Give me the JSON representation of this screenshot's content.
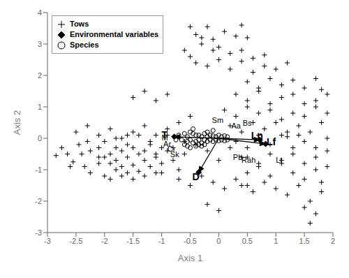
{
  "chart_data": {
    "type": "scatter",
    "xlabel": "Axis 1",
    "ylabel": "Axis 2",
    "xlim": [
      -3,
      2
    ],
    "ylim": [
      -3,
      4
    ],
    "xticks": [
      -3,
      -2.5,
      -2,
      -1.5,
      -1,
      -0.5,
      0,
      0.5,
      1,
      1.5,
      2
    ],
    "yticks": [
      -3,
      -2,
      -1,
      0,
      1,
      2,
      3,
      4
    ],
    "legend": "upper left",
    "series": [
      {
        "name": "Tows",
        "type": "scatter",
        "marker": "plus",
        "color": "black",
        "points": [
          [
            -2.85,
            -0.55
          ],
          [
            -2.75,
            -0.3
          ],
          [
            -2.65,
            -0.5
          ],
          [
            -2.55,
            -0.75
          ],
          [
            -2.45,
            -0.2
          ],
          [
            -2.35,
            -0.9
          ],
          [
            -2.25,
            -0.4
          ],
          [
            -2.25,
            -1.1
          ],
          [
            -2.1,
            -0.8
          ],
          [
            -2.1,
            -0.3
          ],
          [
            -2.0,
            -0.6
          ],
          [
            -2.0,
            -1.2
          ],
          [
            -1.9,
            -0.5
          ],
          [
            -1.9,
            -0.8
          ],
          [
            -1.8,
            -0.3
          ],
          [
            -1.8,
            -0.7
          ],
          [
            -1.8,
            -1.0
          ],
          [
            -1.7,
            -0.4
          ],
          [
            -1.7,
            -0.9
          ],
          [
            -1.6,
            -0.2
          ],
          [
            -1.6,
            -0.6
          ],
          [
            -1.6,
            -1.1
          ],
          [
            -1.5,
            -0.3
          ],
          [
            -1.5,
            -0.85
          ],
          [
            -1.4,
            -0.5
          ],
          [
            -1.4,
            -1.05
          ],
          [
            -1.3,
            -0.4
          ],
          [
            -1.3,
            -0.7
          ],
          [
            -1.2,
            -0.2
          ],
          [
            -1.2,
            -0.9
          ],
          [
            -1.1,
            -0.5
          ],
          [
            -1.1,
            -1.1
          ],
          [
            -1.0,
            -0.3
          ],
          [
            -1.0,
            -0.8
          ],
          [
            -0.9,
            -0.4
          ],
          [
            -2.6,
            -0.9
          ],
          [
            -2.4,
            -0.5
          ],
          [
            -2.3,
            -0.1
          ],
          [
            -2.1,
            -0.6
          ],
          [
            -2.0,
            -0.1
          ],
          [
            -1.9,
            -1.3
          ],
          [
            -1.8,
            0.0
          ],
          [
            -1.7,
            -1.2
          ],
          [
            -1.6,
            0.1
          ],
          [
            -1.5,
            -1.3
          ],
          [
            -1.4,
            0.1
          ],
          [
            -1.3,
            -1.2
          ],
          [
            -1.2,
            -0.1
          ],
          [
            -1.1,
            -0.6
          ],
          [
            -1.0,
            -1.1
          ],
          [
            -0.9,
            0.1
          ],
          [
            -0.8,
            -0.7
          ],
          [
            -0.7,
            -1.0
          ],
          [
            -0.6,
            -0.1
          ],
          [
            -2.5,
            0.2
          ],
          [
            -2.3,
            0.4
          ],
          [
            -2.1,
            0.1
          ],
          [
            -1.9,
            0.3
          ],
          [
            -1.7,
            0.0
          ],
          [
            -1.5,
            0.2
          ],
          [
            -1.3,
            0.4
          ],
          [
            -1.1,
            0.1
          ],
          [
            -0.9,
            0.3
          ],
          [
            -0.5,
            3.55
          ],
          [
            -0.4,
            3.3
          ],
          [
            -0.3,
            3.2
          ],
          [
            -0.2,
            3.55
          ],
          [
            -0.1,
            3.15
          ],
          [
            0.1,
            3.4
          ],
          [
            0.3,
            3.25
          ],
          [
            0.4,
            3.6
          ],
          [
            0.5,
            3.2
          ],
          [
            -0.6,
            2.8
          ],
          [
            -0.5,
            2.6
          ],
          [
            -0.3,
            3.0
          ],
          [
            -0.1,
            2.8
          ],
          [
            0.0,
            2.9
          ],
          [
            0.2,
            2.7
          ],
          [
            0.4,
            2.8
          ],
          [
            0.6,
            2.55
          ],
          [
            0.8,
            2.65
          ],
          [
            -0.4,
            2.4
          ],
          [
            -0.2,
            2.3
          ],
          [
            0.0,
            2.5
          ],
          [
            0.2,
            2.2
          ],
          [
            0.4,
            2.45
          ],
          [
            0.6,
            2.1
          ],
          [
            0.8,
            2.3
          ],
          [
            1.0,
            2.2
          ],
          [
            1.2,
            2.4
          ],
          [
            0.5,
            1.8
          ],
          [
            0.7,
            1.6
          ],
          [
            0.9,
            1.9
          ],
          [
            1.1,
            1.7
          ],
          [
            1.3,
            1.85
          ],
          [
            1.5,
            1.6
          ],
          [
            1.7,
            1.9
          ],
          [
            1.8,
            1.55
          ],
          [
            0.3,
            1.4
          ],
          [
            0.5,
            1.2
          ],
          [
            0.7,
            1.5
          ],
          [
            0.9,
            1.1
          ],
          [
            1.1,
            1.3
          ],
          [
            1.3,
            1.4
          ],
          [
            1.5,
            1.1
          ],
          [
            1.7,
            1.2
          ],
          [
            1.9,
            1.4
          ],
          [
            0.1,
            0.9
          ],
          [
            0.3,
            0.7
          ],
          [
            0.5,
            1.0
          ],
          [
            0.7,
            0.8
          ],
          [
            0.9,
            0.9
          ],
          [
            1.1,
            0.6
          ],
          [
            1.3,
            0.8
          ],
          [
            1.5,
            0.7
          ],
          [
            1.7,
            1.0
          ],
          [
            1.9,
            0.8
          ],
          [
            0.2,
            0.4
          ],
          [
            0.4,
            0.2
          ],
          [
            0.6,
            0.5
          ],
          [
            0.8,
            0.3
          ],
          [
            1.0,
            0.5
          ],
          [
            1.2,
            0.2
          ],
          [
            1.4,
            0.4
          ],
          [
            1.6,
            0.2
          ],
          [
            1.8,
            0.5
          ],
          [
            0.3,
            -0.1
          ],
          [
            0.5,
            -0.3
          ],
          [
            0.7,
            0.1
          ],
          [
            0.9,
            -0.2
          ],
          [
            1.1,
            0.1
          ],
          [
            1.3,
            -0.3
          ],
          [
            1.5,
            -0.1
          ],
          [
            1.7,
            -0.3
          ],
          [
            1.9,
            0.0
          ],
          [
            0.5,
            -0.6
          ],
          [
            0.7,
            -0.8
          ],
          [
            0.9,
            -0.5
          ],
          [
            1.1,
            -0.7
          ],
          [
            1.3,
            -0.5
          ],
          [
            1.5,
            -0.8
          ],
          [
            1.7,
            -0.6
          ],
          [
            1.9,
            -0.4
          ],
          [
            0.5,
            -1.1
          ],
          [
            0.7,
            -0.9
          ],
          [
            0.9,
            -1.2
          ],
          [
            1.1,
            -0.8
          ],
          [
            1.3,
            -1.1
          ],
          [
            1.5,
            -1.3
          ],
          [
            1.7,
            -1.0
          ],
          [
            1.8,
            -1.4
          ],
          [
            1.9,
            -0.9
          ],
          [
            0.4,
            -1.5
          ],
          [
            0.6,
            -1.7
          ],
          [
            0.8,
            -1.4
          ],
          [
            1.0,
            -1.6
          ],
          [
            1.2,
            -1.8
          ],
          [
            1.4,
            -1.5
          ],
          [
            1.6,
            -2.0
          ],
          [
            1.8,
            -1.7
          ],
          [
            -0.8,
            -0.3
          ],
          [
            -0.6,
            -0.5
          ],
          [
            -0.4,
            -0.2
          ],
          [
            -0.2,
            -0.4
          ],
          [
            0.0,
            -0.7
          ],
          [
            0.2,
            -0.3
          ],
          [
            0.4,
            -0.6
          ],
          [
            -0.7,
            -1.3
          ],
          [
            -0.5,
            -1.5
          ],
          [
            -0.3,
            -1.2
          ],
          [
            -0.1,
            -1.4
          ],
          [
            0.1,
            -1.6
          ],
          [
            0.3,
            -1.3
          ],
          [
            0.5,
            -1.5
          ],
          [
            -1.5,
            1.3
          ],
          [
            -1.3,
            1.5
          ],
          [
            -1.1,
            1.2
          ],
          [
            -0.9,
            1.4
          ],
          [
            -0.7,
            0.5
          ],
          [
            -0.5,
            0.7
          ],
          [
            1.5,
            -2.2
          ],
          [
            1.7,
            -2.4
          ],
          [
            1.6,
            -2.7
          ],
          [
            -0.2,
            -2.1
          ],
          [
            0.0,
            -2.3
          ],
          [
            1.2,
            0.05
          ],
          [
            1.4,
            0.1
          ]
        ]
      },
      {
        "name": "Environmental variables",
        "type": "arrow",
        "marker": "diamond",
        "color": "black",
        "origin": [
          0.0,
          0.0
        ],
        "points": [
          [
            -0.78,
            0.05
          ],
          [
            -0.35,
            -1.08
          ],
          [
            0.72,
            -0.05
          ],
          [
            0.82,
            -0.18
          ]
        ],
        "labels": [
          {
            "text": "T",
            "x": -0.95,
            "y": 0.12
          },
          {
            "text": "D",
            "x": -0.4,
            "y": -1.22
          },
          {
            "text": "Ln",
            "x": 0.67,
            "y": 0.08
          },
          {
            "text": "Lf",
            "x": 0.92,
            "y": -0.12
          }
        ]
      },
      {
        "name": "Species",
        "type": "scatter",
        "marker": "circle",
        "color": "black",
        "points": [
          [
            -0.5,
            0.2
          ],
          [
            -0.45,
            0.3
          ],
          [
            -0.4,
            0.1
          ],
          [
            -0.55,
            0.05
          ],
          [
            -0.6,
            0.15
          ],
          [
            -0.65,
            -0.05
          ],
          [
            -0.55,
            -0.1
          ],
          [
            -0.7,
            0.1
          ],
          [
            -0.75,
            -0.05
          ],
          [
            -0.6,
            -0.2
          ],
          [
            -0.5,
            -0.05
          ],
          [
            -0.45,
            0.15
          ],
          [
            -0.4,
            -0.1
          ],
          [
            -0.35,
            0.1
          ],
          [
            -0.3,
            0.05
          ],
          [
            -0.25,
            0.15
          ],
          [
            -0.2,
            0.05
          ],
          [
            -0.15,
            0.1
          ],
          [
            -0.1,
            0.08
          ],
          [
            -0.05,
            0.05
          ],
          [
            0.0,
            0.1
          ],
          [
            0.05,
            0.05
          ],
          [
            0.1,
            0.08
          ],
          [
            0.15,
            0.05
          ],
          [
            -0.35,
            -0.05
          ],
          [
            -0.3,
            -0.15
          ],
          [
            -0.25,
            -0.05
          ],
          [
            -0.2,
            -0.1
          ],
          [
            -0.15,
            -0.05
          ],
          [
            -0.1,
            -0.1
          ],
          [
            -0.05,
            -0.05
          ],
          [
            0.0,
            -0.08
          ],
          [
            0.05,
            -0.05
          ],
          [
            0.1,
            -0.08
          ],
          [
            0.15,
            -0.05
          ],
          [
            -0.45,
            -0.15
          ],
          [
            -0.4,
            -0.25
          ],
          [
            -0.35,
            -0.2
          ],
          [
            -0.3,
            -0.25
          ],
          [
            -0.25,
            -0.2
          ],
          [
            -0.55,
            -0.25
          ],
          [
            -0.5,
            -0.3
          ],
          [
            -0.2,
            0.2
          ],
          [
            -0.1,
            0.25
          ]
        ]
      }
    ],
    "annotations": [
      {
        "text": "Sm",
        "x": -0.12,
        "y": 0.58
      },
      {
        "text": "Aa",
        "x": 0.22,
        "y": 0.4
      },
      {
        "text": "Bs",
        "x": 0.42,
        "y": 0.5
      },
      {
        "text": "M",
        "x": -1.0,
        "y": 0.02
      },
      {
        "text": "Ar",
        "x": -0.97,
        "y": -0.18
      },
      {
        "text": "Cr",
        "x": -0.9,
        "y": -0.33
      },
      {
        "text": "Sk",
        "x": -0.85,
        "y": -0.5
      },
      {
        "text": "Pb",
        "x": 0.25,
        "y": -0.6
      },
      {
        "text": "Rah",
        "x": 0.4,
        "y": -0.68
      },
      {
        "text": "Lt",
        "x": 1.0,
        "y": -0.68
      }
    ]
  }
}
